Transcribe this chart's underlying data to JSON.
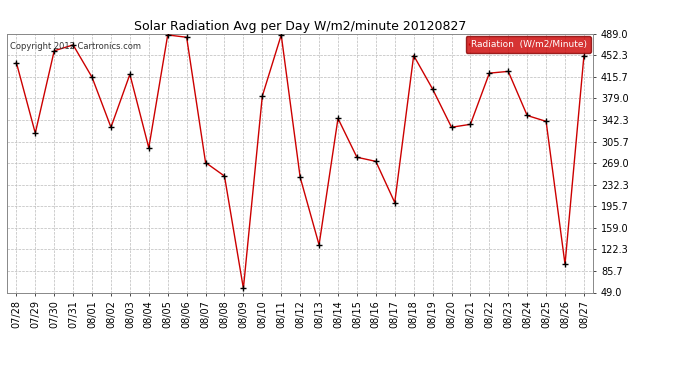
{
  "title": "Solar Radiation Avg per Day W/m2/minute 20120827",
  "copyright": "Copyright 2012 Cartronics.com",
  "legend_label": "Radiation  (W/m2/Minute)",
  "background_color": "#ffffff",
  "plot_bg_color": "#ffffff",
  "line_color": "#cc0000",
  "marker_color": "#000000",
  "grid_color": "#bbbbbb",
  "yticks": [
    49.0,
    85.7,
    122.3,
    159.0,
    195.7,
    232.3,
    269.0,
    305.7,
    342.3,
    379.0,
    415.7,
    452.3,
    489.0
  ],
  "ylim": [
    49.0,
    489.0
  ],
  "dates": [
    "07/28",
    "07/29",
    "07/30",
    "07/31",
    "08/01",
    "08/02",
    "08/03",
    "08/04",
    "08/05",
    "08/06",
    "08/07",
    "08/08",
    "08/09",
    "08/10",
    "08/11",
    "08/12",
    "08/13",
    "08/14",
    "08/15",
    "08/16",
    "08/17",
    "08/18",
    "08/19",
    "08/20",
    "08/21",
    "08/22",
    "08/23",
    "08/24",
    "08/25",
    "08/26",
    "08/27"
  ],
  "values": [
    440,
    320,
    460,
    470,
    415,
    330,
    420,
    295,
    487,
    483,
    270,
    247,
    56,
    383,
    487,
    245,
    130,
    345,
    279,
    272,
    202,
    452,
    395,
    330,
    335,
    422,
    425,
    350,
    340,
    97,
    452
  ]
}
